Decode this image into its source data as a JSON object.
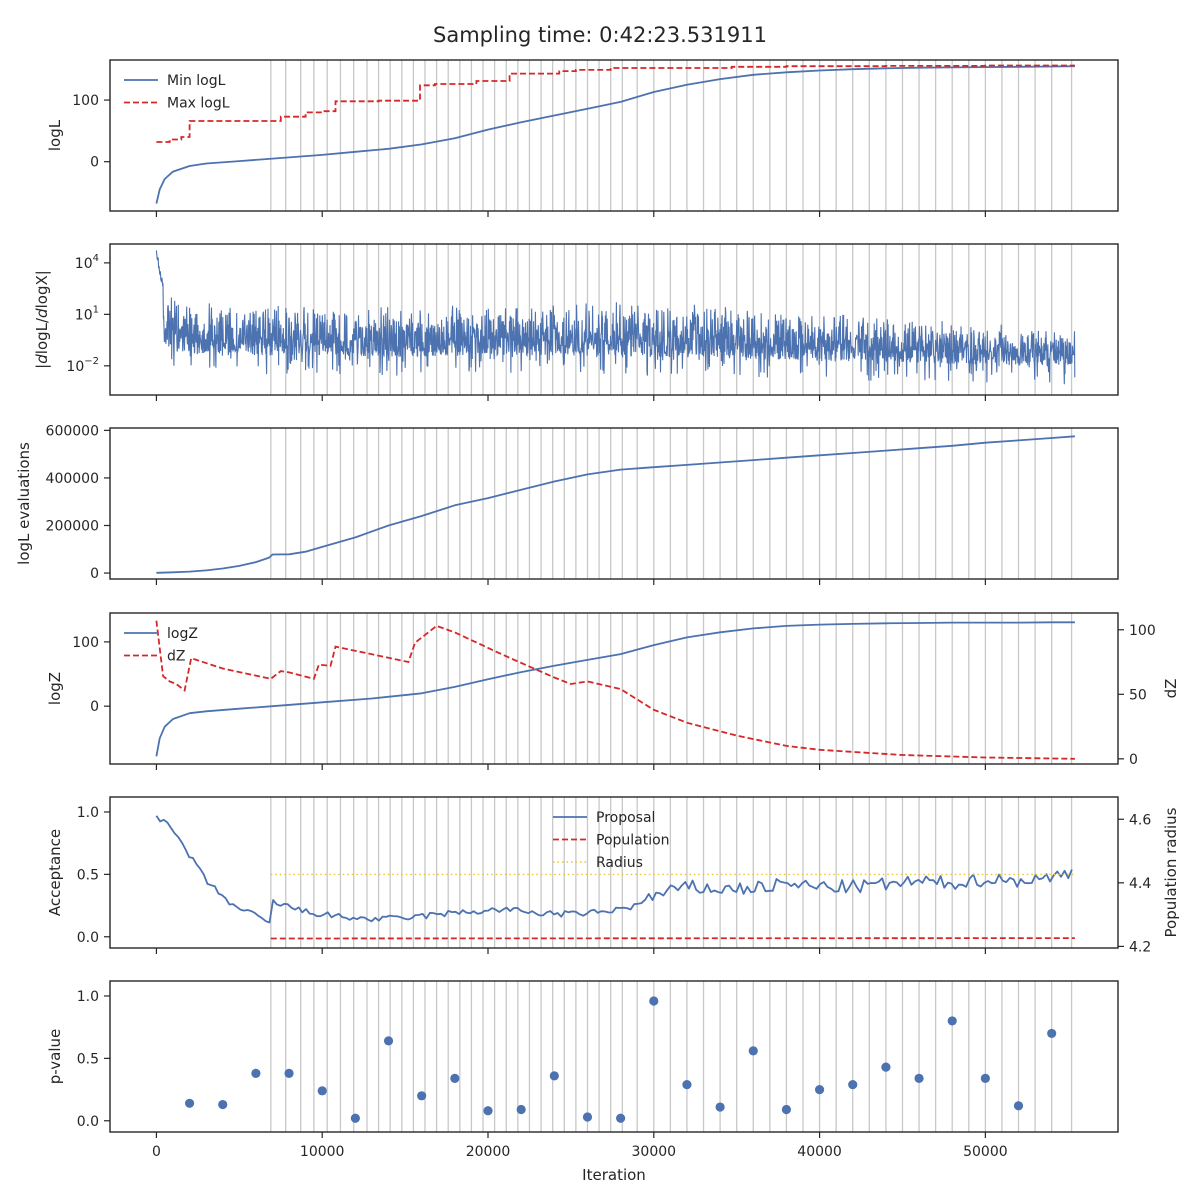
{
  "title": "Sampling time: 0:42:23.531911",
  "shared": {
    "xlabel": "Iteration",
    "xlim": [
      -2800,
      58000
    ],
    "xticks": [
      0,
      10000,
      20000,
      30000,
      40000,
      50000
    ],
    "xtick_labels": [
      "0",
      "10000",
      "20000",
      "30000",
      "40000",
      "50000"
    ],
    "vertical_lines": [
      6900,
      7800,
      8700,
      9500,
      10300,
      11100,
      11900,
      12700,
      13400,
      14100,
      14800,
      15500,
      16200,
      16900,
      17600,
      18300,
      19000,
      19700,
      20400,
      21100,
      21800,
      22500,
      23200,
      23900,
      24600,
      25300,
      26000,
      26700,
      27400,
      28100,
      29000,
      30000,
      31000,
      32000,
      33000,
      34000,
      35000,
      36000,
      37000,
      38000,
      39000,
      40000,
      41000,
      42000,
      43000,
      44000,
      45000,
      46000,
      47000,
      48000,
      49000,
      50000,
      51000,
      52000,
      53000,
      54000,
      55200
    ]
  },
  "chart_data": [
    {
      "type": "line",
      "ylabel": "logL",
      "ylim": [
        -80,
        165
      ],
      "yticks": [
        0,
        100
      ],
      "ytick_labels": [
        "0",
        "100"
      ],
      "legend": "top-left",
      "series": [
        {
          "name": "Min logL",
          "style": "solid",
          "color": "#4c72b0",
          "x": [
            0,
            200,
            500,
            1000,
            2000,
            3000,
            5000,
            7000,
            10000,
            12000,
            14000,
            16000,
            18000,
            20000,
            22000,
            24000,
            26000,
            28000,
            30000,
            32000,
            34000,
            36000,
            38000,
            40000,
            42000,
            44000,
            46000,
            48000,
            50000,
            52000,
            54000,
            55400
          ],
          "y": [
            -68,
            -45,
            -28,
            -16,
            -7,
            -3,
            1,
            5,
            11,
            16,
            21,
            28,
            38,
            52,
            64,
            75,
            86,
            97,
            113,
            125,
            134,
            141,
            145,
            148,
            150,
            151.5,
            152.5,
            153,
            153.5,
            154,
            154.5,
            155
          ]
        },
        {
          "name": "Max logL",
          "style": "dashed",
          "color": "#d62728",
          "x": [
            0,
            800,
            800,
            1500,
            1500,
            2000,
            2000,
            7500,
            7500,
            9000,
            9000,
            10000,
            10000,
            10800,
            10800,
            13400,
            13400,
            15400,
            15400,
            15900,
            15900,
            16800,
            16800,
            19300,
            19300,
            21300,
            21300,
            24300,
            24300,
            25300,
            25300,
            27400,
            27400,
            31500,
            31500,
            34700,
            34700,
            38000,
            38000,
            44000,
            44000,
            50000,
            50000,
            55400
          ],
          "y": [
            32,
            32,
            36,
            36,
            40,
            40,
            66,
            66,
            73,
            73,
            80,
            80,
            82,
            82,
            98,
            98,
            99,
            99,
            99,
            99,
            124,
            124,
            126,
            126,
            131,
            131,
            143,
            143,
            147,
            147,
            149,
            149,
            152,
            152,
            152,
            152,
            154,
            154,
            155,
            155,
            155.5,
            155.5,
            156,
            156
          ]
        }
      ]
    },
    {
      "type": "line",
      "ylabel": "|dlogL/dlogX|",
      "yscale": "log",
      "ylim": [
        -3.7,
        5.1
      ],
      "yticks": [
        -2,
        1,
        4
      ],
      "ytick_labels": [
        "10^-2",
        "10^1",
        "10^4"
      ],
      "series": [
        {
          "name": "",
          "style": "noisy-band",
          "color": "#4c72b0",
          "x": [
            0,
            500,
            2000,
            5000,
            10000,
            15000,
            20000,
            25000,
            30000,
            35000,
            40000,
            45000,
            50000,
            55400
          ],
          "y_upper_log10": [
            4.9,
            2.4,
            1.8,
            1.6,
            1.5,
            1.5,
            1.7,
            1.75,
            1.7,
            1.5,
            1.2,
            0.9,
            0.6,
            0.3
          ],
          "y_lower_log10": [
            0.0,
            -0.8,
            -1.3,
            -1.4,
            -1.4,
            -1.5,
            -1.4,
            -1.4,
            -1.5,
            -1.6,
            -1.7,
            -1.8,
            -1.9,
            -2.0
          ]
        }
      ]
    },
    {
      "type": "line",
      "ylabel": "logL evaluations",
      "ylim": [
        -25000,
        610000
      ],
      "yticks": [
        0,
        200000,
        400000,
        600000
      ],
      "ytick_labels": [
        "0",
        "200000",
        "400000",
        "600000"
      ],
      "series": [
        {
          "name": "",
          "style": "solid",
          "color": "#4c72b0",
          "x": [
            0,
            1000,
            2000,
            3000,
            4000,
            5000,
            6000,
            6800,
            7000,
            8000,
            9000,
            10000,
            12000,
            14000,
            16000,
            18000,
            20000,
            22000,
            24000,
            26000,
            28000,
            30000,
            32000,
            34000,
            36000,
            38000,
            40000,
            42000,
            44000,
            46000,
            48000,
            50000,
            52000,
            54000,
            55400
          ],
          "y": [
            1000,
            3000,
            6000,
            11000,
            19000,
            30000,
            46000,
            65000,
            78000,
            79000,
            90000,
            110000,
            150000,
            200000,
            240000,
            285000,
            315000,
            350000,
            385000,
            415000,
            435000,
            445000,
            455000,
            465000,
            475000,
            485000,
            495000,
            505000,
            515000,
            525000,
            535000,
            548000,
            558000,
            568000,
            575000
          ]
        }
      ]
    },
    {
      "type": "line",
      "ylabel": "logZ",
      "ylabel_right": "dZ",
      "ylim": [
        -90,
        145
      ],
      "yticks": [
        0,
        100
      ],
      "ytick_labels": [
        "0",
        "100"
      ],
      "ylim_right": [
        -4,
        113
      ],
      "yticks_right": [
        0,
        50,
        100
      ],
      "ytick_labels_right": [
        "0",
        "50",
        "100"
      ],
      "legend": "top-left",
      "series": [
        {
          "name": "logZ",
          "style": "solid",
          "color": "#4c72b0",
          "axis": "left",
          "x": [
            0,
            200,
            500,
            1000,
            2000,
            3000,
            5000,
            7000,
            10000,
            13000,
            16000,
            18000,
            20000,
            22000,
            24000,
            26000,
            28000,
            30000,
            32000,
            34000,
            36000,
            38000,
            40000,
            42000,
            44000,
            46000,
            48000,
            50000,
            52000,
            54000,
            55400
          ],
          "y": [
            -78,
            -50,
            -32,
            -20,
            -11,
            -8,
            -4,
            0,
            6,
            12,
            20,
            30,
            42,
            53,
            63,
            72,
            81,
            95,
            107,
            115,
            121,
            125,
            127,
            128,
            129,
            129.5,
            130,
            130,
            130,
            130.5,
            130.5
          ]
        },
        {
          "name": "dZ",
          "style": "dashed",
          "color": "#d62728",
          "axis": "right",
          "x": [
            0,
            400,
            800,
            1200,
            1700,
            2100,
            4000,
            6900,
            7500,
            8000,
            9500,
            9800,
            10500,
            10800,
            15200,
            15600,
            16900,
            18000,
            21000,
            24000,
            25000,
            26000,
            28000,
            30000,
            32000,
            35000,
            38000,
            40000,
            45000,
            50000,
            55400
          ],
          "y": [
            107,
            64,
            60,
            58,
            53,
            78,
            70,
            62,
            68,
            67,
            62,
            73,
            72,
            87,
            75,
            90,
            103,
            98,
            80,
            63,
            58,
            60,
            54,
            38,
            28,
            18,
            10,
            7,
            3,
            1,
            0
          ]
        }
      ]
    },
    {
      "type": "line",
      "ylabel": "Acceptance",
      "ylabel_right": "Population radius",
      "ylim": [
        -0.09,
        1.12
      ],
      "yticks": [
        0.0,
        0.5,
        1.0
      ],
      "ytick_labels": [
        "0.0",
        "0.5",
        "1.0"
      ],
      "ylim_right": [
        4.195,
        4.67
      ],
      "yticks_right": [
        4.2,
        4.4,
        4.6
      ],
      "ytick_labels_right": [
        "4.2",
        "4.4",
        "4.6"
      ],
      "legend": "top-center",
      "series": [
        {
          "name": "Proposal",
          "style": "solid",
          "color": "#4c72b0",
          "axis": "left",
          "x": [
            0,
            1000,
            2000,
            3000,
            4000,
            5000,
            6000,
            6900,
            7000,
            9000,
            11000,
            13000,
            15000,
            17000,
            19000,
            21000,
            23000,
            25000,
            27000,
            29000,
            30000,
            31000,
            32000,
            34000,
            36000,
            38000,
            40000,
            42000,
            44000,
            46000,
            48000,
            50000,
            52000,
            54000,
            55400
          ],
          "y": [
            0.97,
            0.85,
            0.65,
            0.45,
            0.32,
            0.22,
            0.17,
            0.1,
            0.28,
            0.2,
            0.16,
            0.14,
            0.15,
            0.18,
            0.2,
            0.22,
            0.19,
            0.18,
            0.2,
            0.25,
            0.33,
            0.36,
            0.4,
            0.38,
            0.39,
            0.42,
            0.4,
            0.4,
            0.42,
            0.44,
            0.43,
            0.46,
            0.45,
            0.47,
            0.53
          ]
        },
        {
          "name": "Population",
          "style": "dashed",
          "color": "#d62728",
          "axis": "right",
          "x": [
            6900,
            55400
          ],
          "y": [
            4.225,
            4.226
          ]
        },
        {
          "name": "Radius",
          "style": "dotted",
          "color": "#e8c72a",
          "axis": "left",
          "x": [
            6900,
            55400
          ],
          "y": [
            0.5,
            0.5
          ]
        }
      ]
    },
    {
      "type": "scatter",
      "ylabel": "p-value",
      "ylim": [
        -0.09,
        1.12
      ],
      "yticks": [
        0.0,
        0.5,
        1.0
      ],
      "ytick_labels": [
        "0.0",
        "0.5",
        "1.0"
      ],
      "series": [
        {
          "name": "",
          "color": "#4c72b0",
          "x": [
            2000,
            4000,
            6000,
            8000,
            10000,
            12000,
            14000,
            16000,
            18000,
            20000,
            22000,
            24000,
            26000,
            28000,
            30000,
            32000,
            34000,
            36000,
            38000,
            40000,
            42000,
            44000,
            46000,
            48000,
            50000,
            52000,
            54000
          ],
          "y": [
            0.14,
            0.13,
            0.38,
            0.38,
            0.24,
            0.02,
            0.64,
            0.2,
            0.34,
            0.08,
            0.09,
            0.36,
            0.03,
            0.02,
            0.96,
            0.29,
            0.11,
            0.56,
            0.09,
            0.25,
            0.29,
            0.43,
            0.34,
            0.8,
            0.34,
            0.12,
            0.7
          ]
        }
      ]
    }
  ]
}
